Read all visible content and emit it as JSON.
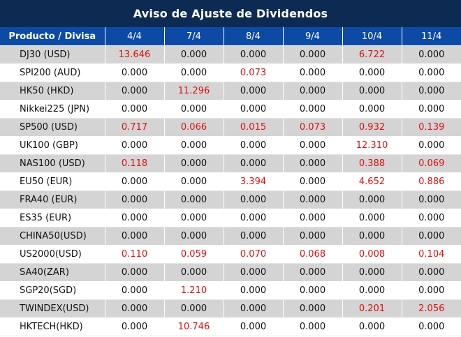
{
  "title": "Aviso de Ajuste de Dividendos",
  "header": {
    "product_label": "Producto / Divisa",
    "dates": [
      "4/4",
      "7/4",
      "8/4",
      "9/4",
      "10/4",
      "11/4"
    ]
  },
  "colors": {
    "title_bg": "#0d2b52",
    "header_bg": "#0c4aa6",
    "alt_row_bg": "#d4d4d4",
    "highlight_value": "#e01010"
  },
  "rows": [
    {
      "product": "DJ30 (USD)",
      "values": [
        "13.646",
        "0.000",
        "0.000",
        "0.000",
        "6.722",
        "0.000"
      ]
    },
    {
      "product": "SPI200 (AUD)",
      "values": [
        "0.000",
        "0.000",
        "0.073",
        "0.000",
        "0.000",
        "0.000"
      ]
    },
    {
      "product": "HK50 (HKD)",
      "values": [
        "0.000",
        "11.296",
        "0.000",
        "0.000",
        "0.000",
        "0.000"
      ]
    },
    {
      "product": "Nikkei225 (JPN)",
      "values": [
        "0.000",
        "0.000",
        "0.000",
        "0.000",
        "0.000",
        "0.000"
      ]
    },
    {
      "product": "SP500 (USD)",
      "values": [
        "0.717",
        "0.066",
        "0.015",
        "0.073",
        "0.932",
        "0.139"
      ]
    },
    {
      "product": "UK100 (GBP)",
      "values": [
        "0.000",
        "0.000",
        "0.000",
        "0.000",
        "12.310",
        "0.000"
      ]
    },
    {
      "product": "NAS100 (USD)",
      "values": [
        "0.118",
        "0.000",
        "0.000",
        "0.000",
        "0.388",
        "0.069"
      ]
    },
    {
      "product": "EU50 (EUR)",
      "values": [
        "0.000",
        "0.000",
        "3.394",
        "0.000",
        "4.652",
        "0.886"
      ]
    },
    {
      "product": "FRA40 (EUR)",
      "values": [
        "0.000",
        "0.000",
        "0.000",
        "0.000",
        "0.000",
        "0.000"
      ]
    },
    {
      "product": "ES35 (EUR)",
      "values": [
        "0.000",
        "0.000",
        "0.000",
        "0.000",
        "0.000",
        "0.000"
      ]
    },
    {
      "product": "CHINA50(USD)",
      "values": [
        "0.000",
        "0.000",
        "0.000",
        "0.000",
        "0.000",
        "0.000"
      ]
    },
    {
      "product": "US2000(USD)",
      "values": [
        "0.110",
        "0.059",
        "0.070",
        "0.068",
        "0.008",
        "0.104"
      ]
    },
    {
      "product": "SA40(ZAR)",
      "values": [
        "0.000",
        "0.000",
        "0.000",
        "0.000",
        "0.000",
        "0.000"
      ]
    },
    {
      "product": "SGP20(SGD)",
      "values": [
        "0.000",
        "1.210",
        "0.000",
        "0.000",
        "0.000",
        "0.000"
      ]
    },
    {
      "product": "TWINDEX(USD)",
      "values": [
        "0.000",
        "0.000",
        "0.000",
        "0.000",
        "0.201",
        "2.056"
      ]
    },
    {
      "product": "HKTECH(HKD)",
      "values": [
        "0.000",
        "10.746",
        "0.000",
        "0.000",
        "0.000",
        "0.000"
      ]
    }
  ]
}
